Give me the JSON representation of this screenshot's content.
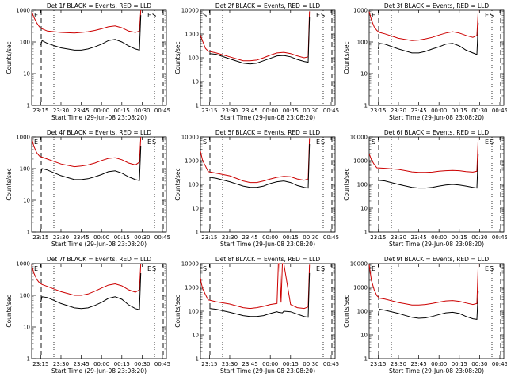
{
  "chart_data": [
    {
      "type": "line",
      "title": "Det 1f BLACK = Events, RED = LLD",
      "xlabel": "Start Time (29-Jun-08 23:08:20)",
      "ylabel": "Counts/sec",
      "ylim": [
        1,
        1000
      ],
      "ylog": true,
      "yticks": [
        "1",
        "10",
        "100",
        "1000"
      ],
      "xticks": [
        "23:15",
        "23:30",
        "23:45",
        "00:00",
        "00:15",
        "00:30",
        "00:45"
      ],
      "markers": [
        "E",
        "E",
        "S"
      ],
      "grid": false,
      "series": [
        {
          "color": "#cc0000",
          "x": [
            "23:08:20",
            "23:10",
            "23:12",
            "23:14",
            "23:16",
            "23:20",
            "23:30",
            "23:40",
            "23:45",
            "23:50",
            "23:55",
            "00:00",
            "00:05",
            "00:10",
            "00:15",
            "00:20",
            "00:25",
            "00:28",
            "00:29"
          ],
          "y": [
            900,
            600,
            400,
            300,
            260,
            220,
            200,
            190,
            200,
            210,
            230,
            260,
            300,
            320,
            280,
            220,
            200,
            220,
            1000
          ]
        },
        {
          "color": "#000000",
          "x": [
            "23:15",
            "23:16",
            "23:20",
            "23:30",
            "23:40",
            "23:45",
            "23:50",
            "23:55",
            "00:00",
            "00:05",
            "00:10",
            "00:15",
            "00:20",
            "00:25",
            "00:28",
            "00:29"
          ],
          "y": [
            80,
            110,
            90,
            65,
            55,
            55,
            60,
            70,
            85,
            110,
            120,
            100,
            75,
            60,
            55,
            700
          ]
        }
      ]
    },
    {
      "type": "line",
      "title": "Det 2f BLACK = Events, RED = LLD",
      "xlabel": "Start Time (29-Jun-08 23:08:20)",
      "ylabel": "Counts/sec",
      "ylim": [
        1,
        10000
      ],
      "ylog": true,
      "yticks": [
        "1",
        "10",
        "100",
        "1000",
        "10000"
      ],
      "xticks": [
        "23:15",
        "23:30",
        "23:45",
        "00:00",
        "00:15",
        "00:30",
        "00:45"
      ],
      "markers": [
        "S",
        "E",
        "S"
      ],
      "grid": false,
      "series": [
        {
          "color": "#cc0000",
          "x": [
            "23:08:20",
            "23:10",
            "23:12",
            "23:14",
            "23:20",
            "23:30",
            "23:40",
            "23:45",
            "23:50",
            "23:55",
            "00:00",
            "00:05",
            "00:10",
            "00:15",
            "00:20",
            "00:25",
            "00:28",
            "00:29"
          ],
          "y": [
            900,
            500,
            250,
            190,
            160,
            110,
            75,
            75,
            80,
            100,
            130,
            160,
            170,
            150,
            120,
            100,
            110,
            9000
          ]
        },
        {
          "color": "#000000",
          "x": [
            "23:15",
            "23:20",
            "23:30",
            "23:40",
            "23:45",
            "23:50",
            "23:55",
            "00:00",
            "00:05",
            "00:10",
            "00:15",
            "00:20",
            "00:25",
            "00:28",
            "00:29"
          ],
          "y": [
            150,
            140,
            90,
            60,
            55,
            60,
            75,
            95,
            120,
            125,
            110,
            85,
            70,
            65,
            5000
          ]
        }
      ]
    },
    {
      "type": "line",
      "title": "Det 3f BLACK = Events, RED = LLD",
      "xlabel": "Start Time (29-Jun-08 23:08:20)",
      "ylabel": "Counts/sec",
      "ylim": [
        1,
        1000
      ],
      "ylog": true,
      "yticks": [
        "1",
        "10",
        "100",
        "1000"
      ],
      "xticks": [
        "23:15",
        "23:30",
        "23:45",
        "00:00",
        "00:15",
        "00:30",
        "00:45"
      ],
      "markers": [
        "E",
        "E",
        "S"
      ],
      "grid": false,
      "series": [
        {
          "color": "#cc0000",
          "x": [
            "23:08:20",
            "23:10",
            "23:12",
            "23:14",
            "23:16",
            "23:20",
            "23:30",
            "23:40",
            "23:45",
            "23:50",
            "23:55",
            "00:00",
            "00:05",
            "00:10",
            "00:15",
            "00:20",
            "00:25",
            "00:28",
            "00:29"
          ],
          "y": [
            900,
            500,
            300,
            230,
            200,
            180,
            130,
            110,
            115,
            125,
            140,
            165,
            190,
            210,
            190,
            160,
            140,
            160,
            1000
          ]
        },
        {
          "color": "#000000",
          "x": [
            "23:15",
            "23:16",
            "23:20",
            "23:30",
            "23:40",
            "23:45",
            "23:50",
            "23:55",
            "00:00",
            "00:05",
            "00:10",
            "00:15",
            "00:20",
            "00:25",
            "00:28",
            "00:29"
          ],
          "y": [
            60,
            90,
            85,
            60,
            45,
            45,
            50,
            60,
            70,
            85,
            90,
            75,
            55,
            45,
            40,
            400
          ]
        }
      ]
    },
    {
      "type": "line",
      "title": "Det 4f BLACK = Events, RED = LLD",
      "xlabel": "Start Time (29-Jun-08 23:08:20)",
      "ylabel": "Counts/sec",
      "ylim": [
        1,
        1000
      ],
      "ylog": true,
      "yticks": [
        "1",
        "10",
        "100",
        "1000"
      ],
      "xticks": [
        "23:15",
        "23:30",
        "23:45",
        "00:00",
        "00:15",
        "00:30",
        "00:45"
      ],
      "markers": [
        "E",
        "E",
        "S"
      ],
      "grid": false,
      "series": [
        {
          "color": "#cc0000",
          "x": [
            "23:08:20",
            "23:10",
            "23:12",
            "23:14",
            "23:16",
            "23:20",
            "23:30",
            "23:40",
            "23:45",
            "23:50",
            "23:55",
            "00:00",
            "00:05",
            "00:10",
            "00:15",
            "00:20",
            "00:25",
            "00:28",
            "00:29"
          ],
          "y": [
            900,
            500,
            320,
            250,
            230,
            200,
            140,
            115,
            120,
            130,
            150,
            180,
            210,
            220,
            190,
            150,
            130,
            160,
            1000
          ]
        },
        {
          "color": "#000000",
          "x": [
            "23:15",
            "23:16",
            "23:20",
            "23:30",
            "23:40",
            "23:45",
            "23:50",
            "23:55",
            "00:00",
            "00:05",
            "00:10",
            "00:15",
            "00:20",
            "00:25",
            "00:28",
            "00:29"
          ],
          "y": [
            70,
            100,
            90,
            60,
            45,
            45,
            48,
            55,
            65,
            80,
            85,
            72,
            55,
            45,
            42,
            500
          ]
        }
      ]
    },
    {
      "type": "line",
      "title": "Det 5f BLACK = Events, RED = LLD",
      "xlabel": "Start Time (29-Jun-08 23:08:20)",
      "ylabel": "Counts/sec",
      "ylim": [
        1,
        10000
      ],
      "ylog": true,
      "yticks": [
        "1",
        "10",
        "100",
        "1000",
        "10000"
      ],
      "xticks": [
        "23:15",
        "23:30",
        "23:45",
        "00:00",
        "00:15",
        "00:30",
        "00:45"
      ],
      "markers": [
        "S",
        "E",
        "S"
      ],
      "grid": false,
      "series": [
        {
          "color": "#cc0000",
          "x": [
            "23:08:20",
            "23:10",
            "23:12",
            "23:14",
            "23:20",
            "23:30",
            "23:40",
            "23:45",
            "23:50",
            "23:55",
            "00:00",
            "00:05",
            "00:10",
            "00:15",
            "00:20",
            "00:25",
            "00:28",
            "00:29"
          ],
          "y": [
            2500,
            1000,
            600,
            350,
            300,
            230,
            140,
            120,
            120,
            140,
            170,
            200,
            220,
            210,
            170,
            150,
            170,
            9000
          ]
        },
        {
          "color": "#000000",
          "x": [
            "23:15",
            "23:20",
            "23:30",
            "23:40",
            "23:45",
            "23:50",
            "23:55",
            "00:00",
            "00:05",
            "00:10",
            "00:15",
            "00:20",
            "00:25",
            "00:28",
            "00:29"
          ],
          "y": [
            200,
            180,
            130,
            85,
            75,
            75,
            85,
            110,
            130,
            140,
            120,
            90,
            75,
            70,
            5000
          ]
        }
      ]
    },
    {
      "type": "line",
      "title": "Det 6f BLACK = Events, RED = LLD",
      "xlabel": "Start Time (29-Jun-08 23:08:20)",
      "ylabel": "Counts/sec",
      "ylim": [
        1,
        10000
      ],
      "ylog": true,
      "yticks": [
        "1",
        "10",
        "100",
        "1000",
        "10000"
      ],
      "xticks": [
        "23:15",
        "23:30",
        "23:45",
        "00:00",
        "00:15",
        "00:30",
        "00:45"
      ],
      "markers": [
        "S",
        "E",
        "S"
      ],
      "grid": false,
      "series": [
        {
          "color": "#cc0000",
          "x": [
            "23:08:20",
            "23:10",
            "23:12",
            "23:14",
            "23:20",
            "23:30",
            "23:40",
            "23:45",
            "23:50",
            "23:55",
            "00:00",
            "00:05",
            "00:10",
            "00:15",
            "00:20",
            "00:25",
            "00:28",
            "00:29"
          ],
          "y": [
            2000,
            1100,
            700,
            500,
            480,
            430,
            340,
            320,
            320,
            330,
            360,
            380,
            390,
            380,
            350,
            330,
            360,
            9500
          ]
        },
        {
          "color": "#000000",
          "x": [
            "23:15",
            "23:20",
            "23:30",
            "23:40",
            "23:45",
            "23:50",
            "23:55",
            "00:00",
            "00:05",
            "00:10",
            "00:15",
            "00:20",
            "00:25",
            "00:28",
            "00:29"
          ],
          "y": [
            150,
            140,
            100,
            75,
            70,
            70,
            75,
            85,
            95,
            100,
            95,
            85,
            75,
            70,
            2000
          ]
        }
      ]
    },
    {
      "type": "line",
      "title": "Det 7f BLACK = Events, RED = LLD",
      "xlabel": "Start Time (29-Jun-08 23:08:20)",
      "ylabel": "Counts/sec",
      "ylim": [
        1,
        1000
      ],
      "ylog": true,
      "yticks": [
        "1",
        "10",
        "100",
        "1000"
      ],
      "xticks": [
        "23:15",
        "23:30",
        "23:45",
        "00:00",
        "00:15",
        "00:30",
        "00:45"
      ],
      "markers": [
        "E",
        "E",
        "S"
      ],
      "grid": false,
      "series": [
        {
          "color": "#cc0000",
          "x": [
            "23:08:20",
            "23:10",
            "23:12",
            "23:14",
            "23:16",
            "23:20",
            "23:30",
            "23:40",
            "23:45",
            "23:50",
            "23:55",
            "00:00",
            "00:05",
            "00:10",
            "00:15",
            "00:20",
            "00:25",
            "00:28",
            "00:29"
          ],
          "y": [
            900,
            500,
            320,
            250,
            220,
            190,
            130,
            100,
            100,
            110,
            135,
            170,
            210,
            230,
            200,
            150,
            125,
            150,
            1000
          ]
        },
        {
          "color": "#000000",
          "x": [
            "23:15",
            "23:16",
            "23:20",
            "23:30",
            "23:40",
            "23:45",
            "23:50",
            "23:55",
            "00:00",
            "00:05",
            "00:10",
            "00:15",
            "00:20",
            "00:25",
            "00:28",
            "00:29"
          ],
          "y": [
            60,
            90,
            85,
            55,
            40,
            38,
            40,
            48,
            60,
            80,
            90,
            75,
            50,
            38,
            35,
            500
          ]
        }
      ]
    },
    {
      "type": "line",
      "title": "Det 8f BLACK = Events, RED = LLD",
      "xlabel": "Start Time (29-Jun-08 23:08:20)",
      "ylabel": "Counts/sec",
      "ylim": [
        1,
        10000
      ],
      "ylog": true,
      "yticks": [
        "1",
        "10",
        "100",
        "1000",
        "10000"
      ],
      "xticks": [
        "23:15",
        "23:30",
        "23:45",
        "00:00",
        "00:15",
        "00:30",
        "00:45"
      ],
      "markers": [
        "S",
        "E",
        "S"
      ],
      "grid": false,
      "series": [
        {
          "color": "#cc0000",
          "x": [
            "23:08:20",
            "23:09",
            "23:10",
            "23:12",
            "23:14",
            "23:20",
            "23:30",
            "23:40",
            "23:45",
            "23:50",
            "23:55",
            "00:00",
            "00:05",
            "00:06",
            "00:07",
            "00:08",
            "00:09",
            "00:10",
            "00:15",
            "00:20",
            "00:25",
            "00:28",
            "00:29"
          ],
          "y": [
            2500,
            1500,
            900,
            500,
            300,
            250,
            200,
            140,
            130,
            140,
            160,
            190,
            210,
            10000,
            10000,
            230,
            10000,
            10000,
            190,
            140,
            130,
            150,
            9000
          ]
        },
        {
          "color": "#000000",
          "x": [
            "23:15",
            "23:20",
            "23:30",
            "23:40",
            "23:45",
            "23:50",
            "23:55",
            "00:00",
            "00:05",
            "00:06",
            "00:09",
            "00:10",
            "00:15",
            "00:20",
            "00:25",
            "00:28",
            "00:29"
          ],
          "y": [
            130,
            120,
            90,
            65,
            60,
            60,
            65,
            80,
            95,
            90,
            85,
            100,
            95,
            75,
            60,
            55,
            4000
          ]
        }
      ]
    },
    {
      "type": "line",
      "title": "Det 9f BLACK = Events, RED = LLD",
      "xlabel": "Start Time (29-Jun-08 23:08:20)",
      "ylabel": "Counts/sec",
      "ylim": [
        1,
        10000
      ],
      "ylog": true,
      "yticks": [
        "1",
        "10",
        "100",
        "1000",
        "10000"
      ],
      "xticks": [
        "23:15",
        "23:30",
        "23:45",
        "00:00",
        "00:15",
        "00:30",
        "00:45"
      ],
      "markers": [
        "E",
        "E",
        "S"
      ],
      "grid": false,
      "series": [
        {
          "color": "#cc0000",
          "x": [
            "23:08:20",
            "23:10",
            "23:12",
            "23:14",
            "23:16",
            "23:20",
            "23:30",
            "23:40",
            "23:45",
            "23:50",
            "23:55",
            "00:00",
            "00:05",
            "00:10",
            "00:15",
            "00:20",
            "00:25",
            "00:28",
            "00:29"
          ],
          "y": [
            9000,
            2000,
            800,
            450,
            350,
            320,
            230,
            180,
            180,
            190,
            210,
            240,
            270,
            280,
            260,
            220,
            190,
            210,
            9500
          ]
        },
        {
          "color": "#000000",
          "x": [
            "23:15",
            "23:16",
            "23:20",
            "23:30",
            "23:40",
            "23:45",
            "23:50",
            "23:55",
            "00:00",
            "00:05",
            "00:10",
            "00:15",
            "00:20",
            "00:25",
            "00:28",
            "00:29"
          ],
          "y": [
            70,
            120,
            110,
            80,
            55,
            50,
            52,
            60,
            72,
            85,
            90,
            80,
            60,
            48,
            45,
            700
          ]
        }
      ]
    }
  ]
}
